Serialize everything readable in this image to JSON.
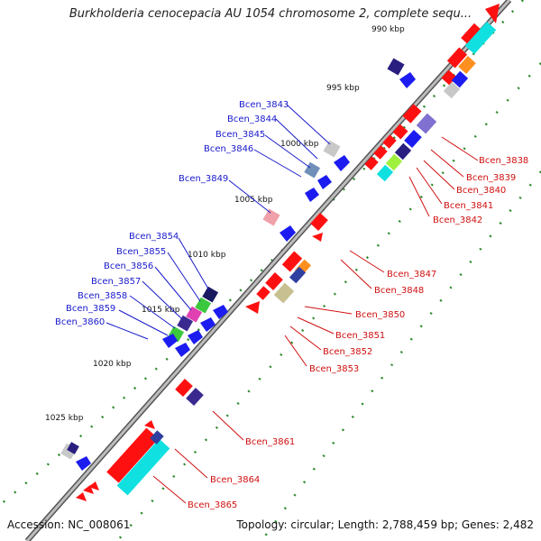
{
  "title": "Burkholderia cenocepacia AU 1054 chromosome 2, complete sequ...",
  "footer": {
    "accession": "Accession: NC_008061",
    "topology": "Topology: circular; Length: 2,788,459 bp; Genes: 2,482"
  },
  "colors": {
    "forward_label": "#1a1acc",
    "reverse_label": "#d01010",
    "backbone": "#8a8a8a",
    "tick": "#2e8b2e"
  },
  "kbp_labels": [
    {
      "label": "990 kbp"
    },
    {
      "label": "995 kbp"
    },
    {
      "label": "1000 kbp"
    },
    {
      "label": "1005 kbp"
    },
    {
      "label": "1010 kbp"
    },
    {
      "label": "1015 kbp"
    },
    {
      "label": "1020 kbp"
    },
    {
      "label": "1025 kbp"
    }
  ],
  "forward_genes": [
    "Bcen_3843",
    "Bcen_3844",
    "Bcen_3845",
    "Bcen_3846",
    "Bcen_3849",
    "Bcen_3854",
    "Bcen_3855",
    "Bcen_3856",
    "Bcen_3857",
    "Bcen_3858",
    "Bcen_3859",
    "Bcen_3860"
  ],
  "reverse_genes": [
    "Bcen_3838",
    "Bcen_3839",
    "Bcen_3840",
    "Bcen_3841",
    "Bcen_3842",
    "Bcen_3847",
    "Bcen_3848",
    "Bcen_3850",
    "Bcen_3851",
    "Bcen_3852",
    "Bcen_3853",
    "Bcen_3861",
    "Bcen_3864",
    "Bcen_3865"
  ]
}
